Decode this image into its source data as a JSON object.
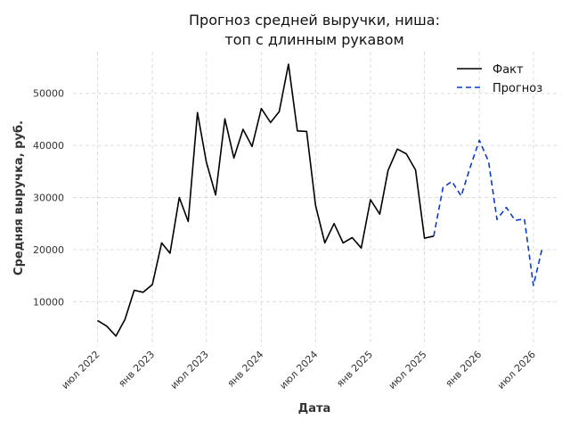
{
  "chart_data": {
    "type": "line",
    "title_lines": [
      "Прогноз средней выручки, ниша:",
      "топ с длинным рукавом"
    ],
    "xlabel": "Дата",
    "ylabel": "Средняя выручка, руб.",
    "ylim": [
      1500,
      58000
    ],
    "yticks": [
      10000,
      20000,
      30000,
      40000,
      50000
    ],
    "xlim": [
      "2022-04-10",
      "2026-09-20"
    ],
    "xticks": [
      {
        "date": "2022-07-01",
        "label": "июл 2022"
      },
      {
        "date": "2023-01-01",
        "label": "янв 2023"
      },
      {
        "date": "2023-07-01",
        "label": "июл 2023"
      },
      {
        "date": "2024-01-01",
        "label": "янв 2024"
      },
      {
        "date": "2024-07-01",
        "label": "июл 2024"
      },
      {
        "date": "2025-01-01",
        "label": "янв 2025"
      },
      {
        "date": "2025-07-01",
        "label": "июл 2025"
      },
      {
        "date": "2026-01-01",
        "label": "янв 2026"
      },
      {
        "date": "2026-07-01",
        "label": "июл 2026"
      }
    ],
    "grid": true,
    "legend_position": "top-right",
    "series": [
      {
        "name": "Факт",
        "color": "#000000",
        "dash": "solid",
        "x": [
          "2022-07-01",
          "2022-08-01",
          "2022-09-01",
          "2022-10-01",
          "2022-11-01",
          "2022-12-01",
          "2023-01-01",
          "2023-02-01",
          "2023-03-01",
          "2023-04-01",
          "2023-05-01",
          "2023-06-01",
          "2023-07-01",
          "2023-08-01",
          "2023-09-01",
          "2023-10-01",
          "2023-11-01",
          "2023-12-01",
          "2024-01-01",
          "2024-02-01",
          "2024-03-01",
          "2024-04-01",
          "2024-05-01",
          "2024-06-01",
          "2024-07-01",
          "2024-08-01",
          "2024-09-01",
          "2024-10-01",
          "2024-11-01",
          "2024-12-01",
          "2025-01-01",
          "2025-02-01",
          "2025-03-01",
          "2025-04-01",
          "2025-05-01",
          "2025-06-01",
          "2025-07-01",
          "2025-08-01"
        ],
        "y": [
          6400,
          5300,
          3400,
          6600,
          12200,
          11800,
          13300,
          21300,
          19300,
          30000,
          25400,
          46300,
          36800,
          30500,
          45100,
          37600,
          43100,
          39800,
          47100,
          44400,
          46500,
          55600,
          42800,
          42700,
          28500,
          21300,
          25000,
          21300,
          22300,
          20300,
          29600,
          26800,
          35200,
          39300,
          38400,
          35300,
          22200,
          22600
        ]
      },
      {
        "name": "Прогноз",
        "color": "#0a3cc8",
        "dash": "dashed",
        "x": [
          "2025-08-01",
          "2025-09-01",
          "2025-10-01",
          "2025-11-01",
          "2025-12-01",
          "2026-01-01",
          "2026-02-01",
          "2026-03-01",
          "2026-04-01",
          "2026-05-01",
          "2026-06-01",
          "2026-07-01",
          "2026-08-01"
        ],
        "y": [
          22600,
          31900,
          33100,
          30300,
          35800,
          41000,
          36900,
          25800,
          28100,
          25600,
          25900,
          13100,
          20600
        ]
      }
    ]
  }
}
